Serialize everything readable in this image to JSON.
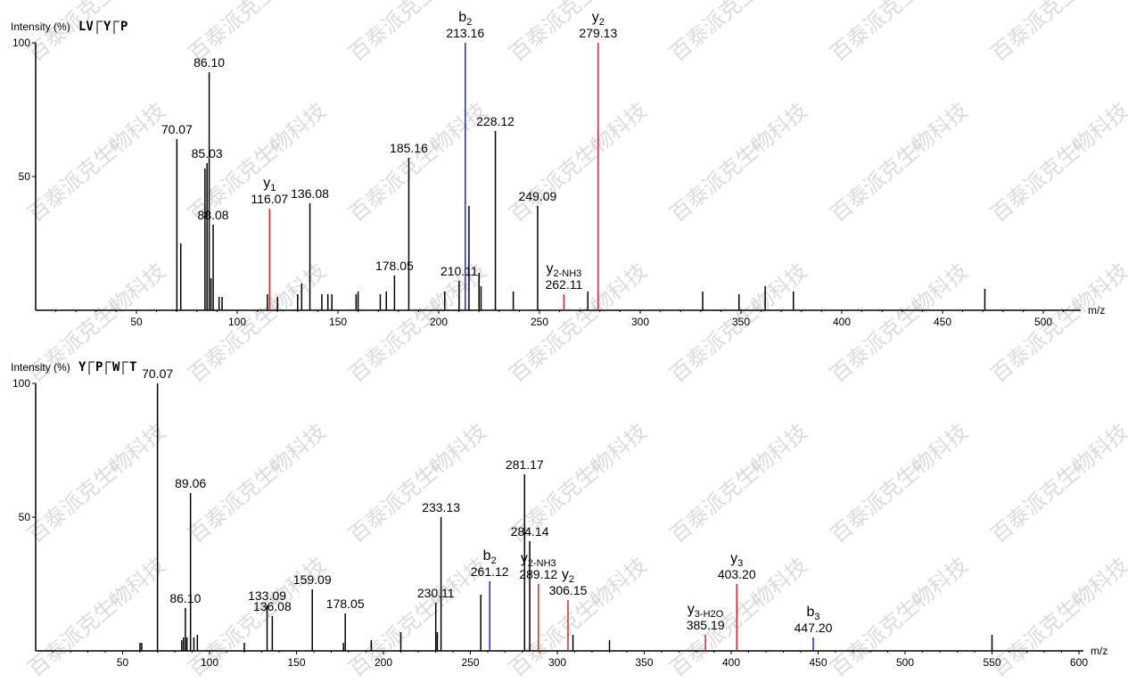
{
  "watermark": "百泰派克生物科技",
  "colors": {
    "fragment": "#000000",
    "b_ion": "#1f2ac8",
    "y_ion": "#d42a2a"
  },
  "chart_data": [
    {
      "type": "bar",
      "ylabel": "Intensity (%)",
      "sequence": [
        "LV",
        "Y",
        "P"
      ],
      "xlabel": "m/z",
      "xlim": [
        0,
        520
      ],
      "ylim": [
        0,
        100
      ],
      "xticks": [
        50,
        100,
        150,
        200,
        250,
        300,
        350,
        400,
        450,
        500
      ],
      "yticks": [
        50,
        100
      ],
      "peaks": [
        {
          "mz": 70.07,
          "intensity": 64,
          "color": "k",
          "label": "70.07"
        },
        {
          "mz": 72.0,
          "intensity": 25,
          "color": "k"
        },
        {
          "mz": 84.0,
          "intensity": 53,
          "color": "k"
        },
        {
          "mz": 85.03,
          "intensity": 55,
          "color": "k",
          "label": "85.03"
        },
        {
          "mz": 86.1,
          "intensity": 89,
          "color": "k",
          "label": "86.10"
        },
        {
          "mz": 87.0,
          "intensity": 12,
          "color": "k"
        },
        {
          "mz": 88.08,
          "intensity": 32,
          "color": "k",
          "label": "88.08"
        },
        {
          "mz": 91.0,
          "intensity": 5,
          "color": "k"
        },
        {
          "mz": 92.5,
          "intensity": 5,
          "color": "k"
        },
        {
          "mz": 116.07,
          "intensity": 38,
          "color": "r",
          "ion": "y",
          "sub": "1",
          "label": "116.07"
        },
        {
          "mz": 115.0,
          "intensity": 6,
          "color": "k"
        },
        {
          "mz": 120.0,
          "intensity": 5,
          "color": "k"
        },
        {
          "mz": 130.0,
          "intensity": 6,
          "color": "k"
        },
        {
          "mz": 132.0,
          "intensity": 10,
          "color": "k"
        },
        {
          "mz": 136.08,
          "intensity": 40,
          "color": "k",
          "label": "136.08"
        },
        {
          "mz": 142.0,
          "intensity": 6,
          "color": "k"
        },
        {
          "mz": 145.0,
          "intensity": 6,
          "color": "k"
        },
        {
          "mz": 147.0,
          "intensity": 6,
          "color": "k"
        },
        {
          "mz": 159.0,
          "intensity": 6,
          "color": "k"
        },
        {
          "mz": 160.0,
          "intensity": 7,
          "color": "k"
        },
        {
          "mz": 171.0,
          "intensity": 6,
          "color": "k"
        },
        {
          "mz": 174.0,
          "intensity": 7,
          "color": "k"
        },
        {
          "mz": 178.05,
          "intensity": 13,
          "color": "k",
          "label": "178.05"
        },
        {
          "mz": 185.16,
          "intensity": 57,
          "color": "k",
          "label": "185.16"
        },
        {
          "mz": 203.0,
          "intensity": 7,
          "color": "k"
        },
        {
          "mz": 210.11,
          "intensity": 11,
          "color": "k",
          "label": "210.11"
        },
        {
          "mz": 213.16,
          "intensity": 100,
          "color": "b",
          "ion": "b",
          "sub": "2",
          "label": "213.16"
        },
        {
          "mz": 215.0,
          "intensity": 39,
          "color": "k"
        },
        {
          "mz": 220.0,
          "intensity": 14,
          "color": "k"
        },
        {
          "mz": 221.0,
          "intensity": 9,
          "color": "k"
        },
        {
          "mz": 228.12,
          "intensity": 67,
          "color": "k",
          "label": "228.12"
        },
        {
          "mz": 237.0,
          "intensity": 7,
          "color": "k"
        },
        {
          "mz": 249.09,
          "intensity": 39,
          "color": "k",
          "label": "249.09"
        },
        {
          "mz": 262.11,
          "intensity": 6,
          "color": "r",
          "ion": "y",
          "sub": "2-NH3",
          "label": "262.11"
        },
        {
          "mz": 274.0,
          "intensity": 7,
          "color": "k"
        },
        {
          "mz": 279.13,
          "intensity": 100,
          "color": "r",
          "ion": "y",
          "sub": "2",
          "label": "279.13"
        },
        {
          "mz": 331.0,
          "intensity": 7,
          "color": "k"
        },
        {
          "mz": 349.0,
          "intensity": 6,
          "color": "k"
        },
        {
          "mz": 362.0,
          "intensity": 9,
          "color": "k"
        },
        {
          "mz": 376.0,
          "intensity": 7,
          "color": "k"
        },
        {
          "mz": 471.0,
          "intensity": 8,
          "color": "k"
        }
      ]
    },
    {
      "type": "bar",
      "ylabel": "Intensity (%)",
      "sequence": [
        "Y",
        "P",
        "W",
        "T"
      ],
      "xlabel": "m/z",
      "xlim": [
        0,
        610
      ],
      "ylim": [
        0,
        100
      ],
      "xticks": [
        50,
        100,
        150,
        200,
        250,
        300,
        350,
        400,
        450,
        500,
        550,
        600
      ],
      "yticks": [
        50,
        100
      ],
      "peaks": [
        {
          "mz": 60.0,
          "intensity": 3,
          "color": "k"
        },
        {
          "mz": 61.0,
          "intensity": 3,
          "color": "k"
        },
        {
          "mz": 70.07,
          "intensity": 100,
          "color": "k",
          "label": "70.07"
        },
        {
          "mz": 84.0,
          "intensity": 4,
          "color": "k"
        },
        {
          "mz": 85.0,
          "intensity": 5,
          "color": "k"
        },
        {
          "mz": 86.1,
          "intensity": 16,
          "color": "k",
          "label": "86.10"
        },
        {
          "mz": 87.0,
          "intensity": 5,
          "color": "k"
        },
        {
          "mz": 89.06,
          "intensity": 59,
          "color": "k",
          "label": "89.06"
        },
        {
          "mz": 91.0,
          "intensity": 5,
          "color": "k"
        },
        {
          "mz": 93.0,
          "intensity": 6,
          "color": "k"
        },
        {
          "mz": 120.0,
          "intensity": 3,
          "color": "k"
        },
        {
          "mz": 133.09,
          "intensity": 17,
          "color": "k",
          "label": "133.09"
        },
        {
          "mz": 136.08,
          "intensity": 13,
          "color": "k",
          "label": "136.08"
        },
        {
          "mz": 159.09,
          "intensity": 23,
          "color": "k",
          "label": "159.09"
        },
        {
          "mz": 177.0,
          "intensity": 3,
          "color": "k"
        },
        {
          "mz": 178.05,
          "intensity": 14,
          "color": "k",
          "label": "178.05"
        },
        {
          "mz": 193.0,
          "intensity": 4,
          "color": "k"
        },
        {
          "mz": 210.0,
          "intensity": 7,
          "color": "k"
        },
        {
          "mz": 230.11,
          "intensity": 18,
          "color": "k",
          "label": "230.11"
        },
        {
          "mz": 231.0,
          "intensity": 7,
          "color": "k"
        },
        {
          "mz": 233.13,
          "intensity": 50,
          "color": "k",
          "label": "233.13"
        },
        {
          "mz": 256.0,
          "intensity": 21,
          "color": "k"
        },
        {
          "mz": 261.12,
          "intensity": 26,
          "color": "b",
          "ion": "b",
          "sub": "2",
          "label": "261.12"
        },
        {
          "mz": 281.17,
          "intensity": 66,
          "color": "k",
          "label": "281.17"
        },
        {
          "mz": 284.14,
          "intensity": 41,
          "color": "k",
          "label": "284.14"
        },
        {
          "mz": 289.12,
          "intensity": 25,
          "color": "r",
          "ion": "y",
          "sub": "2-NH3",
          "label": "289.12"
        },
        {
          "mz": 306.15,
          "intensity": 19,
          "color": "r",
          "ion": "y",
          "sub": "2",
          "label": "306.15"
        },
        {
          "mz": 309.0,
          "intensity": 6,
          "color": "k"
        },
        {
          "mz": 330.0,
          "intensity": 4,
          "color": "k"
        },
        {
          "mz": 385.19,
          "intensity": 6,
          "color": "r",
          "ion": "y",
          "sub": "3-H2O",
          "label": "385.19"
        },
        {
          "mz": 403.2,
          "intensity": 25,
          "color": "r",
          "ion": "y",
          "sub": "3",
          "label": "403.20"
        },
        {
          "mz": 447.2,
          "intensity": 5,
          "color": "b",
          "ion": "b",
          "sub": "3",
          "label": "447.20"
        },
        {
          "mz": 550.0,
          "intensity": 6,
          "color": "k"
        }
      ]
    }
  ]
}
